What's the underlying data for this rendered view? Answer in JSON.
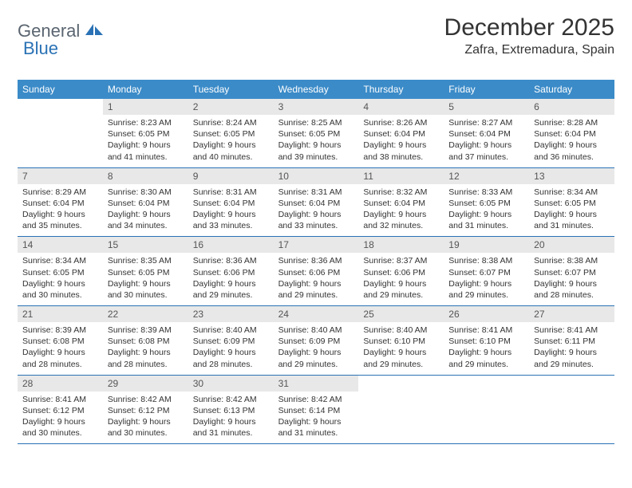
{
  "logo": {
    "word1": "General",
    "word2": "Blue"
  },
  "title": "December 2025",
  "location": "Zafra, Extremadura, Spain",
  "colors": {
    "header_bg": "#3b8bc8",
    "header_text": "#ffffff",
    "daynum_bg": "#e8e8e8",
    "cell_border": "#2a72b5",
    "logo_gray": "#5a6570",
    "logo_blue": "#2a72b5",
    "text": "#333333",
    "background": "#ffffff"
  },
  "typography": {
    "title_fontsize": 30,
    "location_fontsize": 16,
    "header_fontsize": 12,
    "daynum_fontsize": 12,
    "body_fontsize": 10.5,
    "logo_fontsize": 22
  },
  "layout": {
    "columns": 7,
    "rows": 5,
    "leading_blanks": 1,
    "trailing_blanks": 3
  },
  "weekdays": [
    "Sunday",
    "Monday",
    "Tuesday",
    "Wednesday",
    "Thursday",
    "Friday",
    "Saturday"
  ],
  "days": [
    {
      "n": 1,
      "sunrise": "8:23 AM",
      "sunset": "6:05 PM",
      "daylight": "9 hours and 41 minutes."
    },
    {
      "n": 2,
      "sunrise": "8:24 AM",
      "sunset": "6:05 PM",
      "daylight": "9 hours and 40 minutes."
    },
    {
      "n": 3,
      "sunrise": "8:25 AM",
      "sunset": "6:05 PM",
      "daylight": "9 hours and 39 minutes."
    },
    {
      "n": 4,
      "sunrise": "8:26 AM",
      "sunset": "6:04 PM",
      "daylight": "9 hours and 38 minutes."
    },
    {
      "n": 5,
      "sunrise": "8:27 AM",
      "sunset": "6:04 PM",
      "daylight": "9 hours and 37 minutes."
    },
    {
      "n": 6,
      "sunrise": "8:28 AM",
      "sunset": "6:04 PM",
      "daylight": "9 hours and 36 minutes."
    },
    {
      "n": 7,
      "sunrise": "8:29 AM",
      "sunset": "6:04 PM",
      "daylight": "9 hours and 35 minutes."
    },
    {
      "n": 8,
      "sunrise": "8:30 AM",
      "sunset": "6:04 PM",
      "daylight": "9 hours and 34 minutes."
    },
    {
      "n": 9,
      "sunrise": "8:31 AM",
      "sunset": "6:04 PM",
      "daylight": "9 hours and 33 minutes."
    },
    {
      "n": 10,
      "sunrise": "8:31 AM",
      "sunset": "6:04 PM",
      "daylight": "9 hours and 33 minutes."
    },
    {
      "n": 11,
      "sunrise": "8:32 AM",
      "sunset": "6:04 PM",
      "daylight": "9 hours and 32 minutes."
    },
    {
      "n": 12,
      "sunrise": "8:33 AM",
      "sunset": "6:05 PM",
      "daylight": "9 hours and 31 minutes."
    },
    {
      "n": 13,
      "sunrise": "8:34 AM",
      "sunset": "6:05 PM",
      "daylight": "9 hours and 31 minutes."
    },
    {
      "n": 14,
      "sunrise": "8:34 AM",
      "sunset": "6:05 PM",
      "daylight": "9 hours and 30 minutes."
    },
    {
      "n": 15,
      "sunrise": "8:35 AM",
      "sunset": "6:05 PM",
      "daylight": "9 hours and 30 minutes."
    },
    {
      "n": 16,
      "sunrise": "8:36 AM",
      "sunset": "6:06 PM",
      "daylight": "9 hours and 29 minutes."
    },
    {
      "n": 17,
      "sunrise": "8:36 AM",
      "sunset": "6:06 PM",
      "daylight": "9 hours and 29 minutes."
    },
    {
      "n": 18,
      "sunrise": "8:37 AM",
      "sunset": "6:06 PM",
      "daylight": "9 hours and 29 minutes."
    },
    {
      "n": 19,
      "sunrise": "8:38 AM",
      "sunset": "6:07 PM",
      "daylight": "9 hours and 29 minutes."
    },
    {
      "n": 20,
      "sunrise": "8:38 AM",
      "sunset": "6:07 PM",
      "daylight": "9 hours and 28 minutes."
    },
    {
      "n": 21,
      "sunrise": "8:39 AM",
      "sunset": "6:08 PM",
      "daylight": "9 hours and 28 minutes."
    },
    {
      "n": 22,
      "sunrise": "8:39 AM",
      "sunset": "6:08 PM",
      "daylight": "9 hours and 28 minutes."
    },
    {
      "n": 23,
      "sunrise": "8:40 AM",
      "sunset": "6:09 PM",
      "daylight": "9 hours and 28 minutes."
    },
    {
      "n": 24,
      "sunrise": "8:40 AM",
      "sunset": "6:09 PM",
      "daylight": "9 hours and 29 minutes."
    },
    {
      "n": 25,
      "sunrise": "8:40 AM",
      "sunset": "6:10 PM",
      "daylight": "9 hours and 29 minutes."
    },
    {
      "n": 26,
      "sunrise": "8:41 AM",
      "sunset": "6:10 PM",
      "daylight": "9 hours and 29 minutes."
    },
    {
      "n": 27,
      "sunrise": "8:41 AM",
      "sunset": "6:11 PM",
      "daylight": "9 hours and 29 minutes."
    },
    {
      "n": 28,
      "sunrise": "8:41 AM",
      "sunset": "6:12 PM",
      "daylight": "9 hours and 30 minutes."
    },
    {
      "n": 29,
      "sunrise": "8:42 AM",
      "sunset": "6:12 PM",
      "daylight": "9 hours and 30 minutes."
    },
    {
      "n": 30,
      "sunrise": "8:42 AM",
      "sunset": "6:13 PM",
      "daylight": "9 hours and 31 minutes."
    },
    {
      "n": 31,
      "sunrise": "8:42 AM",
      "sunset": "6:14 PM",
      "daylight": "9 hours and 31 minutes."
    }
  ],
  "labels": {
    "sunrise": "Sunrise:",
    "sunset": "Sunset:",
    "daylight": "Daylight:"
  }
}
